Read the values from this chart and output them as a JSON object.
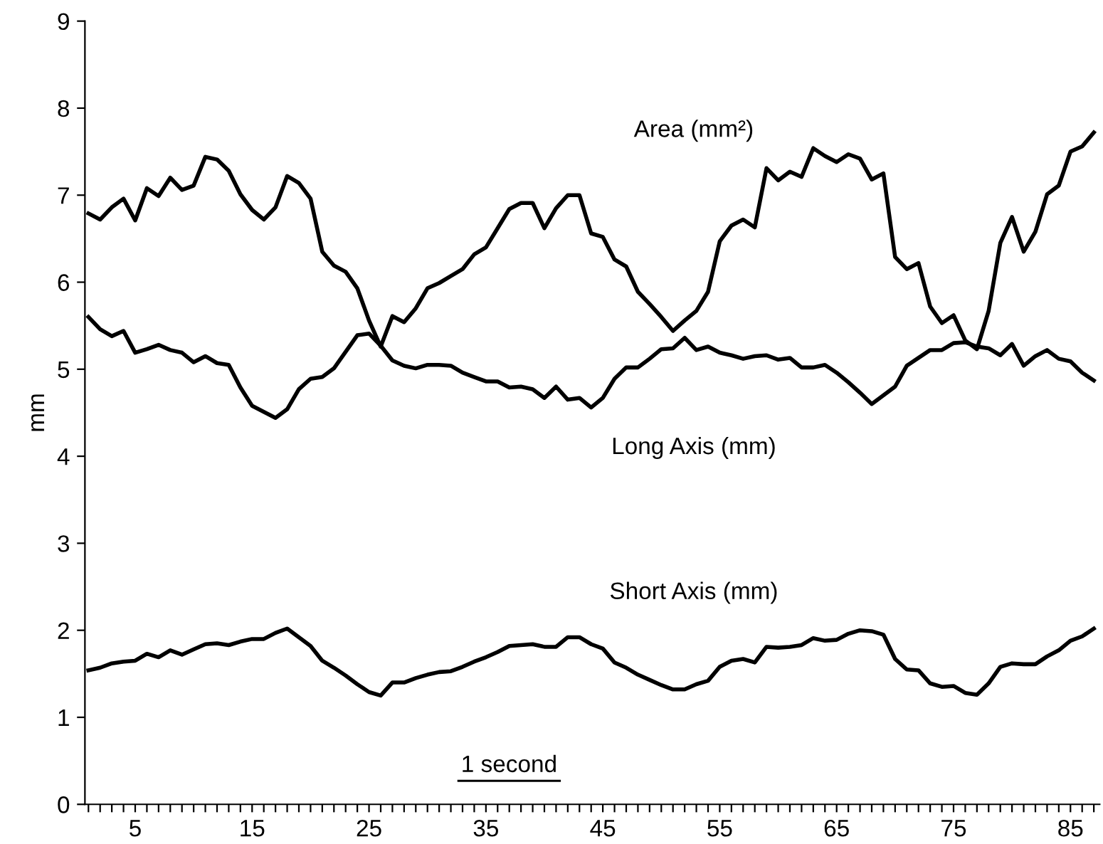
{
  "chart_data": {
    "type": "line",
    "ylabel": "mm",
    "categories": [
      null,
      null,
      null,
      null,
      "5",
      null,
      null,
      null,
      null,
      null,
      null,
      null,
      null,
      null,
      "15",
      null,
      null,
      null,
      null,
      null,
      null,
      null,
      null,
      null,
      "25",
      null,
      null,
      null,
      null,
      null,
      null,
      null,
      null,
      null,
      "35",
      null,
      null,
      null,
      null,
      null,
      null,
      null,
      null,
      null,
      "45",
      null,
      null,
      null,
      null,
      null,
      null,
      null,
      null,
      null,
      "55",
      null,
      null,
      null,
      null,
      null,
      null,
      null,
      null,
      null,
      "65",
      null,
      null,
      null,
      null,
      null,
      null,
      null,
      null,
      null,
      "75",
      null,
      null,
      null,
      null,
      null,
      null,
      null,
      null,
      null,
      "85",
      null,
      null
    ],
    "series": [
      {
        "name": "Area (mm²)",
        "color": "#000000",
        "values": [
          6.79,
          6.72,
          6.86,
          6.96,
          6.71,
          7.08,
          6.99,
          7.2,
          7.06,
          7.11,
          7.44,
          7.41,
          7.28,
          7.01,
          6.83,
          6.72,
          6.86,
          7.22,
          7.14,
          6.96,
          6.35,
          6.19,
          6.12,
          5.93,
          5.56,
          5.26,
          5.61,
          5.54,
          5.7,
          5.93,
          5.99,
          6.07,
          6.15,
          6.32,
          6.4,
          6.62,
          6.84,
          6.91,
          6.91,
          6.62,
          6.85,
          7.0,
          7.0,
          6.56,
          6.52,
          6.26,
          6.18,
          5.89,
          5.75,
          5.6,
          5.44,
          5.56,
          5.67,
          5.89,
          6.47,
          6.65,
          6.72,
          6.63,
          7.31,
          7.17,
          7.27,
          7.21,
          7.54,
          7.45,
          7.38,
          7.47,
          7.42,
          7.18,
          7.25,
          6.29,
          6.15,
          6.22,
          5.72,
          5.53,
          5.62,
          5.33,
          5.23,
          5.67,
          6.45,
          6.75,
          6.35,
          6.58,
          7.01,
          7.11,
          7.5,
          7.56,
          7.72
        ]
      },
      {
        "name": "Long Axis (mm)",
        "color": "#000000",
        "values": [
          5.6,
          5.46,
          5.38,
          5.44,
          5.19,
          5.23,
          5.28,
          5.22,
          5.19,
          5.08,
          5.15,
          5.07,
          5.05,
          4.79,
          4.58,
          4.51,
          4.44,
          4.54,
          4.77,
          4.89,
          4.91,
          5.01,
          5.2,
          5.39,
          5.41,
          5.27,
          5.1,
          5.04,
          5.01,
          5.05,
          5.05,
          5.04,
          4.96,
          4.91,
          4.86,
          4.86,
          4.79,
          4.8,
          4.77,
          4.67,
          4.8,
          4.65,
          4.67,
          4.56,
          4.67,
          4.89,
          5.02,
          5.02,
          5.12,
          5.23,
          5.24,
          5.36,
          5.22,
          5.26,
          5.19,
          5.16,
          5.12,
          5.15,
          5.16,
          5.11,
          5.13,
          5.02,
          5.02,
          5.05,
          4.96,
          4.85,
          4.73,
          4.6,
          4.7,
          4.8,
          5.04,
          5.13,
          5.22,
          5.22,
          5.3,
          5.31,
          5.26,
          5.24,
          5.16,
          5.29,
          5.04,
          5.15,
          5.22,
          5.12,
          5.09,
          4.96,
          4.87
        ]
      },
      {
        "name": "Short Axis (mm)",
        "color": "#000000",
        "values": [
          1.54,
          1.57,
          1.62,
          1.64,
          1.65,
          1.73,
          1.69,
          1.77,
          1.72,
          1.78,
          1.84,
          1.85,
          1.83,
          1.87,
          1.9,
          1.9,
          1.97,
          2.02,
          1.92,
          1.82,
          1.65,
          1.57,
          1.48,
          1.38,
          1.29,
          1.25,
          1.4,
          1.4,
          1.45,
          1.49,
          1.52,
          1.53,
          1.58,
          1.64,
          1.69,
          1.75,
          1.82,
          1.83,
          1.84,
          1.81,
          1.81,
          1.92,
          1.92,
          1.84,
          1.79,
          1.63,
          1.57,
          1.49,
          1.43,
          1.37,
          1.32,
          1.32,
          1.38,
          1.42,
          1.58,
          1.65,
          1.67,
          1.63,
          1.81,
          1.8,
          1.81,
          1.83,
          1.91,
          1.88,
          1.89,
          1.96,
          2.0,
          1.99,
          1.95,
          1.67,
          1.55,
          1.54,
          1.39,
          1.35,
          1.36,
          1.28,
          1.26,
          1.39,
          1.58,
          1.62,
          1.61,
          1.61,
          1.7,
          1.77,
          1.88,
          1.93,
          2.02
        ]
      }
    ],
    "ylim": [
      0,
      9
    ],
    "yticks": [
      0,
      1,
      2,
      3,
      4,
      5,
      6,
      7,
      8,
      9
    ],
    "annotations": [
      "1 second"
    ],
    "legend": false,
    "grid": false,
    "marker": "none",
    "line_style": "solid"
  }
}
